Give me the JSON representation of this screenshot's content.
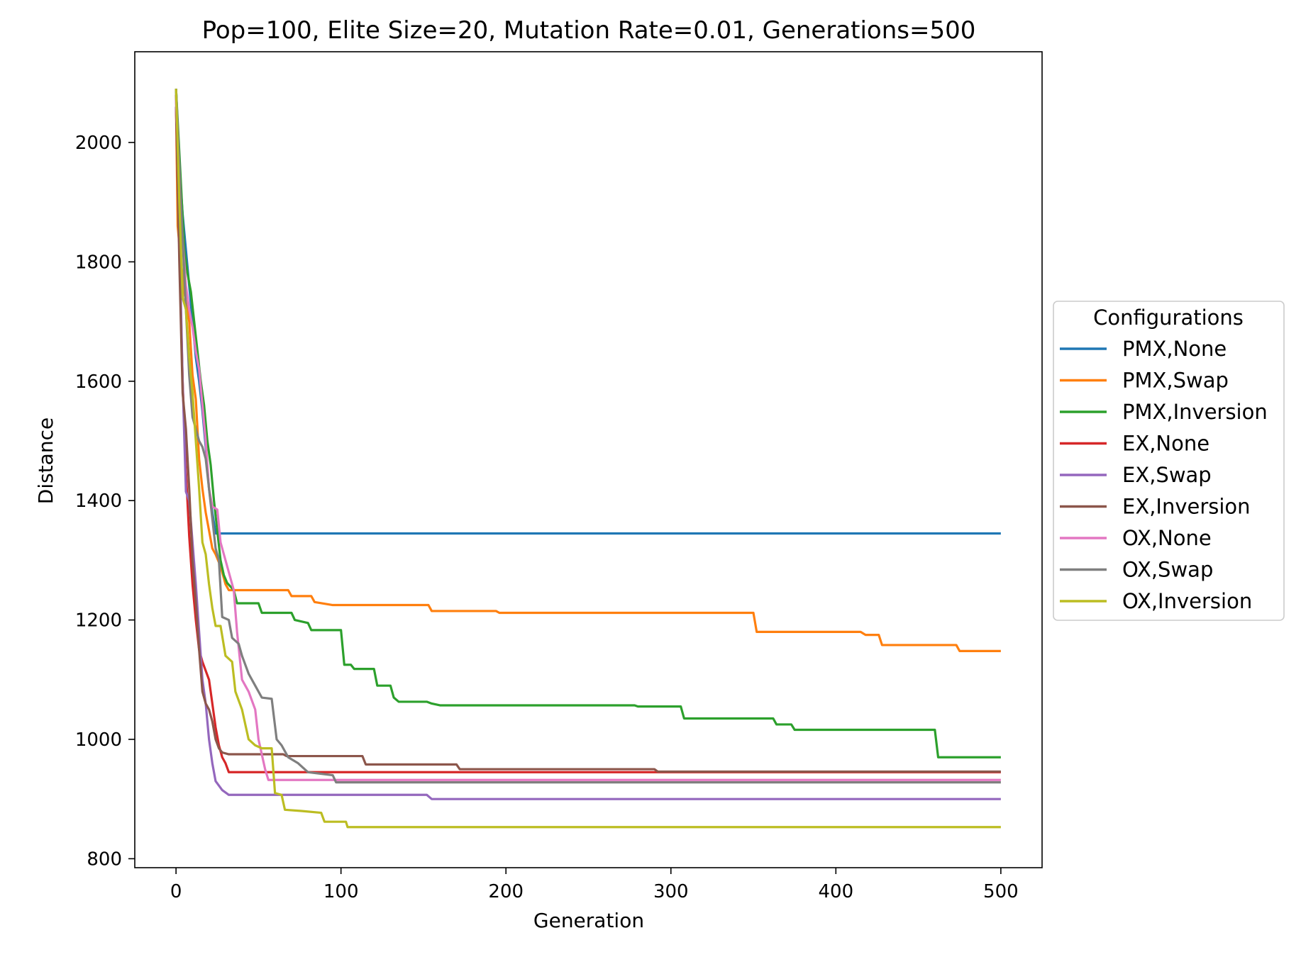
{
  "chart_data": {
    "type": "line",
    "title": "Pop=100, Elite Size=20, Mutation Rate=0.01, Generations=500",
    "xlabel": "Generation",
    "ylabel": "Distance",
    "xlim": [
      -25,
      525
    ],
    "ylim": [
      785,
      2152
    ],
    "xticks": [
      0,
      100,
      200,
      300,
      400,
      500
    ],
    "yticks": [
      800,
      1000,
      1200,
      1400,
      1600,
      1800,
      2000
    ],
    "grid": false,
    "legend": {
      "title": "Configurations",
      "placement": "center-right-outside"
    },
    "series": [
      {
        "name": "PMX,None",
        "color": "#1f77b4",
        "points": [
          [
            0,
            2090
          ],
          [
            2,
            1960
          ],
          [
            4,
            1880
          ],
          [
            6,
            1820
          ],
          [
            8,
            1760
          ],
          [
            10,
            1700
          ],
          [
            12,
            1640
          ],
          [
            14,
            1600
          ],
          [
            16,
            1550
          ],
          [
            18,
            1490
          ],
          [
            20,
            1420
          ],
          [
            22,
            1380
          ],
          [
            24,
            1345
          ],
          [
            500,
            1345
          ]
        ]
      },
      {
        "name": "PMX,Swap",
        "color": "#ff7f0e",
        "points": [
          [
            0,
            2060
          ],
          [
            1,
            1860
          ],
          [
            3,
            1800
          ],
          [
            5,
            1750
          ],
          [
            8,
            1700
          ],
          [
            10,
            1610
          ],
          [
            12,
            1570
          ],
          [
            14,
            1470
          ],
          [
            16,
            1420
          ],
          [
            18,
            1380
          ],
          [
            20,
            1350
          ],
          [
            22,
            1320
          ],
          [
            24,
            1310
          ],
          [
            27,
            1290
          ],
          [
            30,
            1260
          ],
          [
            32,
            1250
          ],
          [
            68,
            1250
          ],
          [
            70,
            1240
          ],
          [
            82,
            1240
          ],
          [
            84,
            1230
          ],
          [
            95,
            1225
          ],
          [
            153,
            1225
          ],
          [
            155,
            1215
          ],
          [
            194,
            1215
          ],
          [
            196,
            1212
          ],
          [
            350,
            1212
          ],
          [
            352,
            1180
          ],
          [
            415,
            1180
          ],
          [
            418,
            1175
          ],
          [
            426,
            1175
          ],
          [
            428,
            1158
          ],
          [
            473,
            1158
          ],
          [
            475,
            1148
          ],
          [
            500,
            1148
          ]
        ]
      },
      {
        "name": "PMX,Inversion",
        "color": "#2ca02c",
        "points": [
          [
            0,
            2090
          ],
          [
            3,
            1930
          ],
          [
            5,
            1820
          ],
          [
            7,
            1780
          ],
          [
            9,
            1750
          ],
          [
            11,
            1700
          ],
          [
            13,
            1650
          ],
          [
            15,
            1600
          ],
          [
            17,
            1560
          ],
          [
            19,
            1500
          ],
          [
            21,
            1460
          ],
          [
            23,
            1400
          ],
          [
            25,
            1350
          ],
          [
            27,
            1300
          ],
          [
            29,
            1275
          ],
          [
            31,
            1262
          ],
          [
            35,
            1250
          ],
          [
            37,
            1228
          ],
          [
            50,
            1228
          ],
          [
            52,
            1212
          ],
          [
            70,
            1212
          ],
          [
            72,
            1200
          ],
          [
            80,
            1195
          ],
          [
            82,
            1183
          ],
          [
            100,
            1183
          ],
          [
            102,
            1125
          ],
          [
            106,
            1125
          ],
          [
            108,
            1118
          ],
          [
            120,
            1118
          ],
          [
            122,
            1090
          ],
          [
            130,
            1090
          ],
          [
            132,
            1070
          ],
          [
            135,
            1063
          ],
          [
            152,
            1063
          ],
          [
            155,
            1060
          ],
          [
            160,
            1057
          ],
          [
            278,
            1057
          ],
          [
            280,
            1055
          ],
          [
            306,
            1055
          ],
          [
            308,
            1035
          ],
          [
            362,
            1035
          ],
          [
            364,
            1025
          ],
          [
            373,
            1025
          ],
          [
            375,
            1016
          ],
          [
            460,
            1016
          ],
          [
            462,
            970
          ],
          [
            500,
            970
          ]
        ]
      },
      {
        "name": "EX,None",
        "color": "#d62728",
        "points": [
          [
            0,
            2060
          ],
          [
            2,
            1820
          ],
          [
            4,
            1600
          ],
          [
            6,
            1450
          ],
          [
            8,
            1340
          ],
          [
            10,
            1260
          ],
          [
            12,
            1200
          ],
          [
            14,
            1150
          ],
          [
            16,
            1130
          ],
          [
            20,
            1100
          ],
          [
            22,
            1060
          ],
          [
            24,
            1020
          ],
          [
            26,
            990
          ],
          [
            28,
            970
          ],
          [
            30,
            960
          ],
          [
            32,
            945
          ],
          [
            500,
            945
          ]
        ]
      },
      {
        "name": "EX,Swap",
        "color": "#9467bd",
        "points": [
          [
            0,
            2060
          ],
          [
            2,
            1850
          ],
          [
            4,
            1600
          ],
          [
            6,
            1415
          ],
          [
            8,
            1400
          ],
          [
            10,
            1330
          ],
          [
            12,
            1260
          ],
          [
            14,
            1180
          ],
          [
            16,
            1100
          ],
          [
            18,
            1060
          ],
          [
            20,
            1000
          ],
          [
            22,
            960
          ],
          [
            24,
            930
          ],
          [
            28,
            915
          ],
          [
            32,
            907
          ],
          [
            152,
            907
          ],
          [
            155,
            900
          ],
          [
            500,
            900
          ]
        ]
      },
      {
        "name": "EX,Inversion",
        "color": "#8c564b",
        "points": [
          [
            0,
            2080
          ],
          [
            2,
            1800
          ],
          [
            4,
            1580
          ],
          [
            6,
            1520
          ],
          [
            8,
            1420
          ],
          [
            10,
            1300
          ],
          [
            12,
            1230
          ],
          [
            14,
            1150
          ],
          [
            16,
            1080
          ],
          [
            18,
            1060
          ],
          [
            20,
            1050
          ],
          [
            22,
            1030
          ],
          [
            24,
            1000
          ],
          [
            26,
            985
          ],
          [
            28,
            978
          ],
          [
            32,
            975
          ],
          [
            65,
            975
          ],
          [
            67,
            972
          ],
          [
            113,
            972
          ],
          [
            115,
            958
          ],
          [
            170,
            958
          ],
          [
            172,
            950
          ],
          [
            290,
            950
          ],
          [
            292,
            946
          ],
          [
            500,
            946
          ]
        ]
      },
      {
        "name": "OX,None",
        "color": "#e377c2",
        "points": [
          [
            0,
            2070
          ],
          [
            3,
            1880
          ],
          [
            6,
            1760
          ],
          [
            8,
            1720
          ],
          [
            10,
            1690
          ],
          [
            12,
            1650
          ],
          [
            14,
            1620
          ],
          [
            16,
            1560
          ],
          [
            18,
            1500
          ],
          [
            20,
            1420
          ],
          [
            22,
            1390
          ],
          [
            25,
            1385
          ],
          [
            27,
            1330
          ],
          [
            30,
            1300
          ],
          [
            32,
            1280
          ],
          [
            35,
            1250
          ],
          [
            37,
            1180
          ],
          [
            40,
            1100
          ],
          [
            42,
            1090
          ],
          [
            44,
            1080
          ],
          [
            48,
            1050
          ],
          [
            50,
            1000
          ],
          [
            52,
            975
          ],
          [
            54,
            950
          ],
          [
            56,
            932
          ],
          [
            100,
            932
          ],
          [
            500,
            932
          ]
        ]
      },
      {
        "name": "OX,Swap",
        "color": "#7f7f7f",
        "points": [
          [
            0,
            2090
          ],
          [
            3,
            1900
          ],
          [
            6,
            1720
          ],
          [
            8,
            1610
          ],
          [
            10,
            1540
          ],
          [
            12,
            1520
          ],
          [
            14,
            1500
          ],
          [
            16,
            1490
          ],
          [
            18,
            1470
          ],
          [
            20,
            1420
          ],
          [
            22,
            1370
          ],
          [
            24,
            1320
          ],
          [
            26,
            1300
          ],
          [
            28,
            1205
          ],
          [
            32,
            1200
          ],
          [
            34,
            1170
          ],
          [
            38,
            1160
          ],
          [
            40,
            1140
          ],
          [
            44,
            1110
          ],
          [
            48,
            1090
          ],
          [
            52,
            1070
          ],
          [
            58,
            1068
          ],
          [
            61,
            1000
          ],
          [
            64,
            990
          ],
          [
            68,
            970
          ],
          [
            74,
            960
          ],
          [
            80,
            945
          ],
          [
            95,
            940
          ],
          [
            97,
            928
          ],
          [
            500,
            928
          ]
        ]
      },
      {
        "name": "OX,Inversion",
        "color": "#bcbd22",
        "points": [
          [
            0,
            2090
          ],
          [
            2,
            1900
          ],
          [
            4,
            1740
          ],
          [
            6,
            1720
          ],
          [
            8,
            1640
          ],
          [
            10,
            1580
          ],
          [
            12,
            1500
          ],
          [
            14,
            1420
          ],
          [
            16,
            1330
          ],
          [
            18,
            1310
          ],
          [
            20,
            1260
          ],
          [
            22,
            1220
          ],
          [
            24,
            1190
          ],
          [
            27,
            1190
          ],
          [
            30,
            1140
          ],
          [
            34,
            1130
          ],
          [
            36,
            1080
          ],
          [
            40,
            1050
          ],
          [
            44,
            1000
          ],
          [
            48,
            990
          ],
          [
            52,
            985
          ],
          [
            58,
            985
          ],
          [
            60,
            910
          ],
          [
            64,
            907
          ],
          [
            66,
            882
          ],
          [
            76,
            880
          ],
          [
            88,
            877
          ],
          [
            90,
            862
          ],
          [
            103,
            862
          ],
          [
            104,
            853
          ],
          [
            500,
            853
          ]
        ]
      }
    ]
  }
}
